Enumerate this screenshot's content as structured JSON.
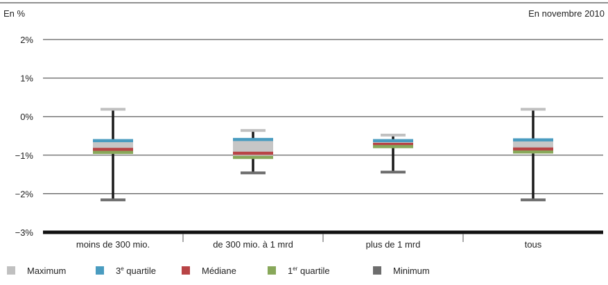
{
  "chart_data": {
    "type": "box",
    "unit_label": "En %",
    "date_label": "En novembre 2010",
    "y_ticks": [
      "2%",
      "1%",
      "0%",
      "−1%",
      "−2%",
      "−3%"
    ],
    "y_tick_values": [
      2,
      1,
      0,
      -1,
      -2,
      -3
    ],
    "ylim": [
      -3,
      2
    ],
    "grid": true,
    "categories": [
      "moins de 300 mio.",
      "de 300 mio. à 1 mrd",
      "plus de 1 mrd",
      "tous"
    ],
    "boxes": [
      {
        "min": -2.15,
        "q1": -0.95,
        "median": -0.85,
        "q3": -0.6,
        "max": 0.2
      },
      {
        "min": -1.45,
        "q1": -1.08,
        "median": -0.95,
        "q3": -0.57,
        "max": -0.35
      },
      {
        "min": -1.43,
        "q1": -0.8,
        "median": -0.72,
        "q3": -0.6,
        "max": -0.47
      },
      {
        "min": -2.15,
        "q1": -0.94,
        "median": -0.84,
        "q3": -0.58,
        "max": 0.2
      }
    ],
    "legend": [
      {
        "key": "max",
        "label": "Maximum",
        "color": "#c0c0c0"
      },
      {
        "key": "q3",
        "label": "3",
        "sup": "e",
        "tail": " quartile",
        "color": "#4a9cc0"
      },
      {
        "key": "median",
        "label": "Médiane",
        "color": "#b84446"
      },
      {
        "key": "q1",
        "label": "1",
        "sup": "er",
        "tail": " quartile",
        "color": "#88a85a"
      },
      {
        "key": "min",
        "label": "Minimum",
        "color": "#6d6d6d"
      }
    ],
    "box_fill_color": "#c6c6c6",
    "whisker_color": "#1a1a1a"
  }
}
